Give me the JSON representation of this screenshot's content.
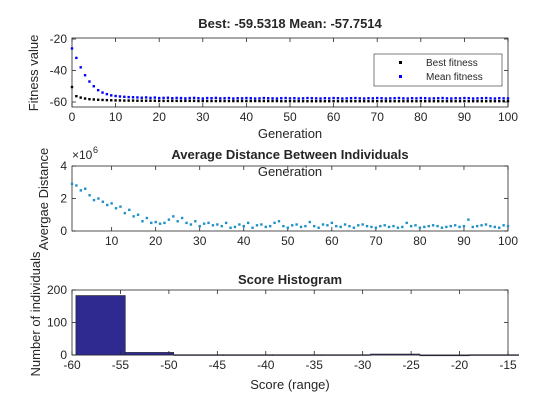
{
  "chart_data": [
    {
      "type": "scatter",
      "title": "Best: -59.5318 Mean: -57.7514",
      "xlabel": "Generation",
      "ylabel": "Fitness value",
      "xlim": [
        0,
        100
      ],
      "ylim": [
        -60,
        -20
      ],
      "xticks": [
        "0",
        "10",
        "20",
        "30",
        "40",
        "50",
        "60",
        "70",
        "80",
        "90",
        "100"
      ],
      "yticks": [
        "-20",
        "-40",
        "-60"
      ],
      "legend_placement": "top-right",
      "series": [
        {
          "name": "Best fitness",
          "color": "#000000",
          "x": [
            0,
            1,
            2,
            3,
            4,
            5,
            6,
            7,
            8,
            9,
            10,
            11,
            12,
            13,
            14,
            15,
            16,
            17,
            18,
            19,
            20,
            21,
            22,
            23,
            24,
            25,
            26,
            27,
            28,
            29,
            30,
            31,
            32,
            33,
            34,
            35,
            36,
            37,
            38,
            39,
            40,
            41,
            42,
            43,
            44,
            45,
            46,
            47,
            48,
            49,
            50,
            51,
            52,
            53,
            54,
            55,
            56,
            57,
            58,
            59,
            60,
            61,
            62,
            63,
            64,
            65,
            66,
            67,
            68,
            69,
            70,
            71,
            72,
            73,
            74,
            75,
            76,
            77,
            78,
            79,
            80,
            81,
            82,
            83,
            84,
            85,
            86,
            87,
            88,
            89,
            90,
            91,
            92,
            93,
            94,
            95,
            96,
            97,
            98,
            99,
            100
          ],
          "values": [
            -50.5,
            -56.3,
            -57.2,
            -57.8,
            -58.2,
            -58.4,
            -58.6,
            -58.7,
            -58.8,
            -58.9,
            -59.0,
            -59.0,
            -59.1,
            -59.1,
            -59.1,
            -59.2,
            -59.2,
            -59.2,
            -59.2,
            -59.2,
            -59.3,
            -59.3,
            -59.3,
            -59.3,
            -59.3,
            -59.3,
            -59.3,
            -59.3,
            -59.3,
            -59.4,
            -59.4,
            -59.4,
            -59.4,
            -59.4,
            -59.4,
            -59.4,
            -59.4,
            -59.4,
            -59.4,
            -59.4,
            -59.4,
            -59.4,
            -59.4,
            -59.4,
            -59.4,
            -59.4,
            -59.4,
            -59.4,
            -59.5,
            -59.5,
            -59.5,
            -59.5,
            -59.5,
            -59.5,
            -59.5,
            -59.5,
            -59.5,
            -59.5,
            -59.5,
            -59.5,
            -59.5,
            -59.5,
            -59.5,
            -59.5,
            -59.5,
            -59.5,
            -59.5,
            -59.5,
            -59.5,
            -59.5,
            -59.5,
            -59.5,
            -59.5,
            -59.5,
            -59.5,
            -59.5,
            -59.5,
            -59.5,
            -59.5,
            -59.5,
            -59.5,
            -59.5,
            -59.5,
            -59.5,
            -59.5,
            -59.5,
            -59.5,
            -59.5,
            -59.5,
            -59.5,
            -59.5,
            -59.5,
            -59.5,
            -59.5,
            -59.5,
            -59.5,
            -59.5,
            -59.5,
            -59.5,
            -59.5,
            -59.5
          ]
        },
        {
          "name": "Mean fitness",
          "color": "#0000ff",
          "x": [
            0,
            1,
            2,
            3,
            4,
            5,
            6,
            7,
            8,
            9,
            10,
            11,
            12,
            13,
            14,
            15,
            16,
            17,
            18,
            19,
            20,
            21,
            22,
            23,
            24,
            25,
            26,
            27,
            28,
            29,
            30,
            31,
            32,
            33,
            34,
            35,
            36,
            37,
            38,
            39,
            40,
            41,
            42,
            43,
            44,
            45,
            46,
            47,
            48,
            49,
            50,
            51,
            52,
            53,
            54,
            55,
            56,
            57,
            58,
            59,
            60,
            61,
            62,
            63,
            64,
            65,
            66,
            67,
            68,
            69,
            70,
            71,
            72,
            73,
            74,
            75,
            76,
            77,
            78,
            79,
            80,
            81,
            82,
            83,
            84,
            85,
            86,
            87,
            88,
            89,
            90,
            91,
            92,
            93,
            94,
            95,
            96,
            97,
            98,
            99,
            100
          ],
          "values": [
            -26,
            -32,
            -38,
            -43,
            -47,
            -50,
            -52.5,
            -54,
            -55,
            -55.8,
            -56.2,
            -56.5,
            -56.7,
            -56.9,
            -57.0,
            -57.1,
            -57.3,
            -57.1,
            -57.4,
            -57.2,
            -57.5,
            -57.4,
            -57.3,
            -57.6,
            -57.4,
            -57.5,
            -57.7,
            -57.5,
            -57.4,
            -57.6,
            -57.8,
            -57.5,
            -57.6,
            -57.4,
            -57.7,
            -57.6,
            -57.5,
            -57.8,
            -57.6,
            -57.7,
            -57.5,
            -57.6,
            -57.8,
            -57.7,
            -57.5,
            -57.6,
            -57.7,
            -57.8,
            -57.6,
            -57.5,
            -57.7,
            -57.6,
            -57.8,
            -57.7,
            -57.5,
            -57.6,
            -57.7,
            -57.8,
            -57.6,
            -57.7,
            -57.5,
            -57.6,
            -57.8,
            -57.7,
            -57.6,
            -57.5,
            -57.7,
            -57.8,
            -57.6,
            -57.7,
            -57.5,
            -57.6,
            -57.8,
            -57.7,
            -57.6,
            -57.5,
            -57.7,
            -57.8,
            -57.6,
            -57.7,
            -57.5,
            -57.6,
            -57.8,
            -57.7,
            -57.6,
            -57.5,
            -57.7,
            -57.8,
            -57.6,
            -57.7,
            -57.5,
            -57.6,
            -57.8,
            -57.7,
            -57.6,
            -57.5,
            -57.7,
            -57.8,
            -57.6,
            -57.7,
            -57.75
          ]
        }
      ]
    },
    {
      "type": "scatter",
      "title": "Average Distance Between Individuals",
      "xlabel": "Generation",
      "ylabel": "Avergae Distance",
      "exponent_label": "×10",
      "exponent_power": "6",
      "xlim": [
        1,
        100
      ],
      "ylim": [
        0,
        4
      ],
      "xticks": [
        "10",
        "20",
        "30",
        "40",
        "50",
        "60",
        "70",
        "80",
        "90",
        "100"
      ],
      "yticks": [
        "0",
        "2",
        "4"
      ],
      "series": [
        {
          "color": "#1e90c8",
          "x": [
            1,
            2,
            3,
            4,
            5,
            6,
            7,
            8,
            9,
            10,
            11,
            12,
            13,
            14,
            15,
            16,
            17,
            18,
            19,
            20,
            21,
            22,
            23,
            24,
            25,
            26,
            27,
            28,
            29,
            30,
            31,
            32,
            33,
            34,
            35,
            36,
            37,
            38,
            39,
            40,
            41,
            42,
            43,
            44,
            45,
            46,
            47,
            48,
            49,
            50,
            51,
            52,
            53,
            54,
            55,
            56,
            57,
            58,
            59,
            60,
            61,
            62,
            63,
            64,
            65,
            66,
            67,
            68,
            69,
            70,
            71,
            72,
            73,
            74,
            75,
            76,
            77,
            78,
            79,
            80,
            81,
            82,
            83,
            84,
            85,
            86,
            87,
            88,
            89,
            90,
            91,
            92,
            93,
            94,
            95,
            96,
            97,
            98,
            99,
            100
          ],
          "values": [
            2.9,
            2.8,
            2.5,
            2.6,
            2.2,
            1.9,
            2.0,
            1.8,
            1.6,
            1.7,
            1.4,
            1.5,
            1.1,
            1.3,
            0.9,
            1.0,
            0.6,
            0.8,
            0.5,
            0.55,
            0.45,
            0.5,
            0.7,
            0.9,
            0.6,
            0.8,
            0.5,
            0.4,
            0.6,
            0.3,
            0.45,
            0.5,
            0.35,
            0.4,
            0.3,
            0.5,
            0.2,
            0.25,
            0.4,
            0.3,
            0.5,
            0.2,
            0.35,
            0.4,
            0.25,
            0.3,
            0.5,
            0.6,
            0.3,
            0.2,
            0.35,
            0.4,
            0.25,
            0.3,
            0.55,
            0.3,
            0.2,
            0.4,
            0.35,
            0.5,
            0.3,
            0.25,
            0.4,
            0.3,
            0.2,
            0.35,
            0.4,
            0.3,
            0.25,
            0.2,
            0.3,
            0.35,
            0.25,
            0.3,
            0.2,
            0.25,
            0.5,
            0.3,
            0.35,
            0.2,
            0.25,
            0.3,
            0.35,
            0.3,
            0.2,
            0.25,
            0.3,
            0.35,
            0.25,
            0.3,
            0.7,
            0.25,
            0.3,
            0.35,
            0.4,
            0.3,
            0.25,
            0.2,
            0.35,
            0.3
          ]
        }
      ]
    },
    {
      "type": "bar",
      "title": "Score Histogram",
      "xlabel": "Score (range)",
      "ylabel": "Number of individuals",
      "xlim": [
        -60,
        -15
      ],
      "ylim": [
        0,
        200
      ],
      "xticks": [
        "-60",
        "-55",
        "-50",
        "-45",
        "-40",
        "-35",
        "-30",
        "-25",
        "-20",
        "-15"
      ],
      "yticks": [
        "0",
        "100",
        "200"
      ],
      "bar_color": "#2e2a8f",
      "bins": [
        {
          "start": -59.6,
          "end": -54.5,
          "value": 183
        },
        {
          "start": -54.5,
          "end": -49.5,
          "value": 8
        },
        {
          "start": -49.5,
          "end": -44.4,
          "value": 1
        },
        {
          "start": -44.4,
          "end": -39.3,
          "value": 1
        },
        {
          "start": -39.3,
          "end": -34.2,
          "value": 1
        },
        {
          "start": -34.2,
          "end": -29.2,
          "value": 1
        },
        {
          "start": -29.2,
          "end": -24.1,
          "value": 3
        },
        {
          "start": -24.1,
          "end": -19.0,
          "value": 0
        },
        {
          "start": -19.0,
          "end": -13.9,
          "value": 1
        }
      ]
    }
  ]
}
